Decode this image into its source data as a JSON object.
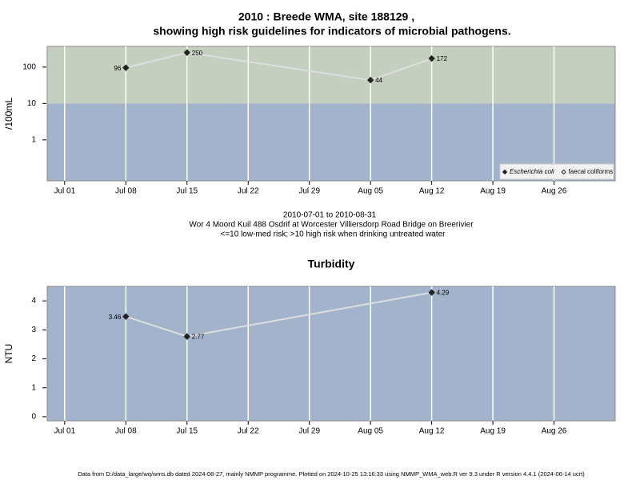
{
  "chart_data": [
    {
      "type": "line",
      "title": [
        "2010 : Breede WMA, site 188129 ,",
        "showing high risk guidelines for indicators of microbial pathogens."
      ],
      "notes": [
        "2010-07-01 to 2010-08-31",
        "Wor 4 Moord Kuil 488 Osdrif at Worcester Villiersdorp Road Bridge on Breerivier",
        "<=10 low-med risk; >10 high risk when drinking untreated water"
      ],
      "y_label": "/100mL",
      "log_y": true,
      "threshold": 10,
      "band_colors": {
        "above": "#c4cfc0",
        "below": "#a2b3cb"
      },
      "line_color": "#dedede",
      "x": [
        "2010-07-08",
        "2010-07-15",
        "2010-08-05",
        "2010-08-12"
      ],
      "series": [
        {
          "name": "Escherichia coli",
          "color": "#222222",
          "marker": "filled",
          "values": [
            96,
            250,
            44,
            172
          ]
        },
        {
          "name": "faecal coliforms",
          "color": "#222222",
          "marker": "open",
          "values": [
            null,
            null,
            null,
            null
          ]
        }
      ],
      "xlim": [
        "2010-06-29",
        "2010-09-02"
      ],
      "xticks": [
        {
          "value": "2010-07-01",
          "label": "Jul 01"
        },
        {
          "value": "2010-07-08",
          "label": "Jul 08"
        },
        {
          "value": "2010-07-15",
          "label": "Jul 15"
        },
        {
          "value": "2010-07-22",
          "label": "Jul 22"
        },
        {
          "value": "2010-07-29",
          "label": "Jul 29"
        },
        {
          "value": "2010-08-05",
          "label": "Aug 05"
        },
        {
          "value": "2010-08-12",
          "label": "Aug 12"
        },
        {
          "value": "2010-08-19",
          "label": "Aug 19"
        },
        {
          "value": "2010-08-26",
          "label": "Aug 26"
        }
      ],
      "ylim": [
        0.075,
        370
      ],
      "yticks": [
        1,
        10,
        100
      ],
      "legend": "bottom-right"
    },
    {
      "type": "line",
      "title": "Turbidity",
      "y_label": "NTU",
      "background": "#a2b3cb",
      "line_color": "#dedede",
      "x": [
        "2010-07-08",
        "2010-07-15",
        "2010-08-12"
      ],
      "series": [
        {
          "color": "#222222",
          "marker": "filled",
          "values": [
            3.46,
            2.77,
            4.29
          ]
        }
      ],
      "xlim": [
        "2010-06-29",
        "2010-09-02"
      ],
      "xticks": [
        {
          "value": "2010-07-01",
          "label": "Jul 01"
        },
        {
          "value": "2010-07-08",
          "label": "Jul 08"
        },
        {
          "value": "2010-07-15",
          "label": "Jul 15"
        },
        {
          "value": "2010-07-22",
          "label": "Jul 22"
        },
        {
          "value": "2010-07-29",
          "label": "Jul 29"
        },
        {
          "value": "2010-08-05",
          "label": "Aug 05"
        },
        {
          "value": "2010-08-12",
          "label": "Aug 12"
        },
        {
          "value": "2010-08-19",
          "label": "Aug 19"
        },
        {
          "value": "2010-08-26",
          "label": "Aug 26"
        }
      ],
      "ylim": [
        -0.14,
        4.5
      ],
      "yticks": [
        0,
        1,
        2,
        3,
        4
      ]
    }
  ],
  "footer": "Data from D:/data_large/wq/wms.db dated 2024-08-27, mainly NMMP programme. Plotted on 2024-10-25 13:16:33 using NMMP_WMA_web.R ver 9.3 under R version 4.4.1 (2024-06-14 ucrt)"
}
